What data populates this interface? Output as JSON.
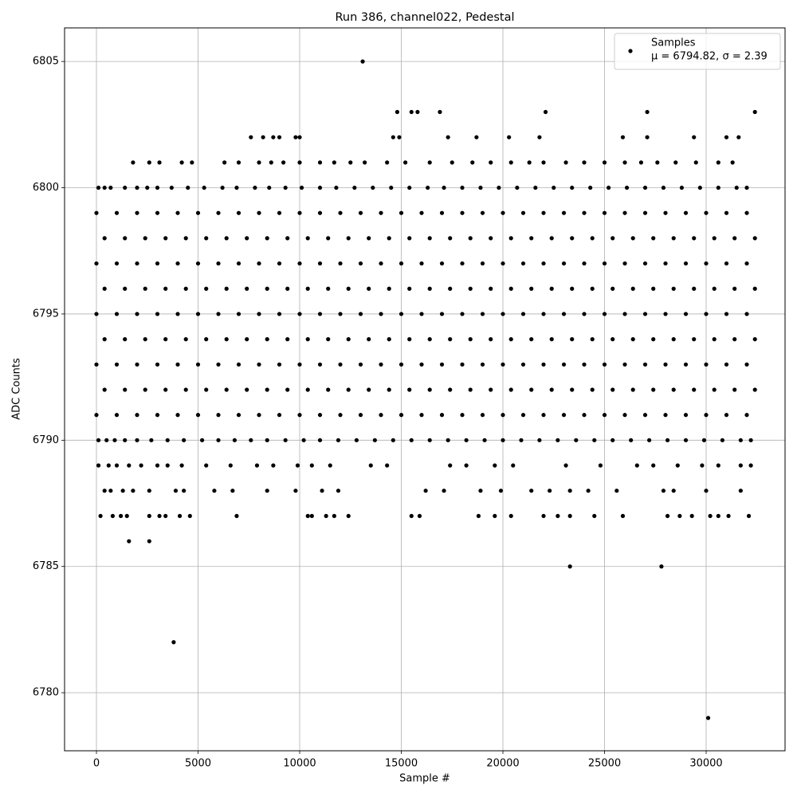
{
  "chart_data": {
    "type": "scatter",
    "title": "Run 386, channel022, Pedestal",
    "x_label": "Sample #",
    "y_label": "ADC Counts",
    "legend_note": "μ = 6794.82, σ = 2.39",
    "legend_position": "upper right",
    "grid": true,
    "xlim": [
      -1569,
      33882
    ],
    "ylim": [
      6777.7,
      6806.33
    ],
    "xticks": [
      0,
      5000,
      10000,
      15000,
      20000,
      25000,
      30000
    ],
    "yticks": [
      6780,
      6785,
      6790,
      6795,
      6800,
      6805
    ],
    "series": [
      {
        "name": "Samples",
        "color": "#000000",
        "x": [
          13100,
          3800,
          30100,
          23300,
          27800,
          1600,
          2600,
          14800,
          15500,
          15800,
          16900,
          22100,
          27100,
          32400,
          7600,
          8200,
          8700,
          9000,
          9800,
          10000,
          14600,
          14900,
          17300,
          18700,
          20300,
          21800,
          25900,
          27100,
          29400,
          31000,
          31600,
          1800,
          2600,
          3100,
          4200,
          4700,
          6300,
          7000,
          8000,
          8600,
          9200,
          10000,
          11000,
          11700,
          12500,
          13200,
          14300,
          15200,
          16400,
          17500,
          18500,
          19400,
          20400,
          21300,
          22000,
          23100,
          24000,
          25000,
          26000,
          26800,
          27600,
          28500,
          29500,
          30600,
          31300,
          100,
          400,
          700,
          1400,
          2000,
          2500,
          3000,
          3700,
          4500,
          5300,
          6200,
          6900,
          7800,
          8500,
          9300,
          10100,
          11000,
          11800,
          12700,
          13600,
          14500,
          15400,
          16300,
          17100,
          18000,
          18900,
          19800,
          20700,
          21600,
          22500,
          23400,
          24300,
          25200,
          26100,
          27000,
          27900,
          28800,
          29700,
          30600,
          31500,
          32000,
          100,
          500,
          900,
          1400,
          2000,
          2700,
          3500,
          4300,
          5200,
          6000,
          6800,
          7600,
          8400,
          9300,
          10200,
          11000,
          11900,
          12800,
          13700,
          14600,
          15500,
          16400,
          17300,
          18200,
          19100,
          20000,
          20900,
          21800,
          22700,
          23600,
          24500,
          25400,
          26300,
          27200,
          28100,
          29000,
          29900,
          30800,
          31700,
          32200,
          100,
          600,
          1000,
          1600,
          2200,
          3000,
          3500,
          4200,
          5400,
          6600,
          7900,
          8700,
          9900,
          10600,
          11500,
          13500,
          14300,
          17400,
          18200,
          19600,
          20500,
          23100,
          24800,
          26600,
          27400,
          28600,
          29800,
          30600,
          31700,
          32200,
          400,
          700,
          1300,
          1800,
          2600,
          3900,
          4300,
          5800,
          6700,
          8400,
          9800,
          11100,
          11900,
          16200,
          17100,
          18900,
          19900,
          21400,
          22300,
          23300,
          24200,
          25600,
          27900,
          28400,
          30000,
          31700,
          200,
          800,
          1200,
          1500,
          2600,
          3100,
          3400,
          4100,
          4600,
          6900,
          10400,
          10600,
          11300,
          11700,
          12400,
          15500,
          15900,
          18800,
          19600,
          20400,
          22000,
          22700,
          23300,
          24500,
          25900,
          28100,
          28700,
          29300,
          30200,
          30600,
          31100,
          32100,
          0,
          1000,
          2000,
          3000,
          4000,
          5000,
          6000,
          7000,
          8000,
          9000,
          10000,
          11000,
          12000,
          13000,
          14000,
          15000,
          16000,
          17000,
          18000,
          19000,
          20000,
          21000,
          22000,
          23000,
          24000,
          25000,
          26000,
          27000,
          28000,
          29000,
          30000,
          31000,
          32000,
          400,
          1400,
          2400,
          3400,
          4400,
          5400,
          6400,
          7400,
          8400,
          9400,
          10400,
          11400,
          12400,
          13400,
          14400,
          15400,
          16400,
          17400,
          18400,
          19400,
          20400,
          21400,
          22400,
          23400,
          24400,
          25400,
          26400,
          27400,
          28400,
          29400,
          30400,
          31400,
          32400,
          0,
          1000,
          2000,
          3000,
          4000,
          5000,
          6000,
          7000,
          8000,
          9000,
          10000,
          11000,
          12000,
          13000,
          14000,
          15000,
          16000,
          17000,
          18000,
          19000,
          20000,
          21000,
          22000,
          23000,
          24000,
          25000,
          26000,
          27000,
          28000,
          29000,
          30000,
          31000,
          32000,
          400,
          1400,
          2400,
          3400,
          4400,
          5400,
          6400,
          7400,
          8400,
          9400,
          10400,
          11400,
          12400,
          13400,
          14400,
          15400,
          16400,
          17400,
          18400,
          19400,
          20400,
          21400,
          22400,
          23400,
          24400,
          25400,
          26400,
          27400,
          28400,
          29400,
          30400,
          31400,
          32400,
          0,
          1000,
          2000,
          3000,
          4000,
          5000,
          6000,
          7000,
          8000,
          9000,
          10000,
          11000,
          12000,
          13000,
          14000,
          15000,
          16000,
          17000,
          18000,
          19000,
          20000,
          21000,
          22000,
          23000,
          24000,
          25000,
          26000,
          27000,
          28000,
          29000,
          30000,
          31000,
          32000,
          400,
          1400,
          2400,
          3400,
          4400,
          5400,
          6400,
          7400,
          8400,
          9400,
          10400,
          11400,
          12400,
          13400,
          14400,
          15400,
          16400,
          17400,
          18400,
          19400,
          20400,
          21400,
          22400,
          23400,
          24400,
          25400,
          26400,
          27400,
          28400,
          29400,
          30400,
          31400,
          32400,
          0,
          1000,
          2000,
          3000,
          4000,
          5000,
          6000,
          7000,
          8000,
          9000,
          10000,
          11000,
          12000,
          13000,
          14000,
          15000,
          16000,
          17000,
          18000,
          19000,
          20000,
          21000,
          22000,
          23000,
          24000,
          25000,
          26000,
          27000,
          28000,
          29000,
          30000,
          31000,
          32000,
          400,
          1400,
          2400,
          3400,
          4400,
          5400,
          6400,
          7400,
          8400,
          9400,
          10400,
          11400,
          12400,
          13400,
          14400,
          15400,
          16400,
          17400,
          18400,
          19400,
          20400,
          21400,
          22400,
          23400,
          24400,
          25400,
          26400,
          27400,
          28400,
          29400,
          30400,
          31400,
          32400,
          0,
          1000,
          2000,
          3000,
          4000,
          5000,
          6000,
          7000,
          8000,
          9000,
          10000,
          11000,
          12000,
          13000,
          14000,
          15000,
          16000,
          17000,
          18000,
          19000,
          20000,
          21000,
          22000,
          23000,
          24000,
          25000,
          26000,
          27000,
          28000,
          29000,
          30000,
          31000,
          32000
        ],
        "values": [
          6805,
          6782,
          6779,
          6785,
          6785,
          6786,
          6786,
          6803,
          6803,
          6803,
          6803,
          6803,
          6803,
          6803,
          6802,
          6802,
          6802,
          6802,
          6802,
          6802,
          6802,
          6802,
          6802,
          6802,
          6802,
          6802,
          6802,
          6802,
          6802,
          6802,
          6802,
          6801,
          6801,
          6801,
          6801,
          6801,
          6801,
          6801,
          6801,
          6801,
          6801,
          6801,
          6801,
          6801,
          6801,
          6801,
          6801,
          6801,
          6801,
          6801,
          6801,
          6801,
          6801,
          6801,
          6801,
          6801,
          6801,
          6801,
          6801,
          6801,
          6801,
          6801,
          6801,
          6801,
          6801,
          6800,
          6800,
          6800,
          6800,
          6800,
          6800,
          6800,
          6800,
          6800,
          6800,
          6800,
          6800,
          6800,
          6800,
          6800,
          6800,
          6800,
          6800,
          6800,
          6800,
          6800,
          6800,
          6800,
          6800,
          6800,
          6800,
          6800,
          6800,
          6800,
          6800,
          6800,
          6800,
          6800,
          6800,
          6800,
          6800,
          6800,
          6800,
          6800,
          6800,
          6800,
          6790,
          6790,
          6790,
          6790,
          6790,
          6790,
          6790,
          6790,
          6790,
          6790,
          6790,
          6790,
          6790,
          6790,
          6790,
          6790,
          6790,
          6790,
          6790,
          6790,
          6790,
          6790,
          6790,
          6790,
          6790,
          6790,
          6790,
          6790,
          6790,
          6790,
          6790,
          6790,
          6790,
          6790,
          6790,
          6790,
          6790,
          6790,
          6790,
          6790,
          6789,
          6789,
          6789,
          6789,
          6789,
          6789,
          6789,
          6789,
          6789,
          6789,
          6789,
          6789,
          6789,
          6789,
          6789,
          6789,
          6789,
          6789,
          6789,
          6789,
          6789,
          6789,
          6789,
          6789,
          6789,
          6789,
          6789,
          6789,
          6789,
          6789,
          6788,
          6788,
          6788,
          6788,
          6788,
          6788,
          6788,
          6788,
          6788,
          6788,
          6788,
          6788,
          6788,
          6788,
          6788,
          6788,
          6788,
          6788,
          6788,
          6788,
          6788,
          6788,
          6788,
          6788,
          6788,
          6788,
          6787,
          6787,
          6787,
          6787,
          6787,
          6787,
          6787,
          6787,
          6787,
          6787,
          6787,
          6787,
          6787,
          6787,
          6787,
          6787,
          6787,
          6787,
          6787,
          6787,
          6787,
          6787,
          6787,
          6787,
          6787,
          6787,
          6787,
          6787,
          6787,
          6787,
          6787,
          6787,
          6799,
          6799,
          6799,
          6799,
          6799,
          6799,
          6799,
          6799,
          6799,
          6799,
          6799,
          6799,
          6799,
          6799,
          6799,
          6799,
          6799,
          6799,
          6799,
          6799,
          6799,
          6799,
          6799,
          6799,
          6799,
          6799,
          6799,
          6799,
          6799,
          6799,
          6799,
          6799,
          6799,
          6798,
          6798,
          6798,
          6798,
          6798,
          6798,
          6798,
          6798,
          6798,
          6798,
          6798,
          6798,
          6798,
          6798,
          6798,
          6798,
          6798,
          6798,
          6798,
          6798,
          6798,
          6798,
          6798,
          6798,
          6798,
          6798,
          6798,
          6798,
          6798,
          6798,
          6798,
          6798,
          6798,
          6797,
          6797,
          6797,
          6797,
          6797,
          6797,
          6797,
          6797,
          6797,
          6797,
          6797,
          6797,
          6797,
          6797,
          6797,
          6797,
          6797,
          6797,
          6797,
          6797,
          6797,
          6797,
          6797,
          6797,
          6797,
          6797,
          6797,
          6797,
          6797,
          6797,
          6797,
          6797,
          6797,
          6796,
          6796,
          6796,
          6796,
          6796,
          6796,
          6796,
          6796,
          6796,
          6796,
          6796,
          6796,
          6796,
          6796,
          6796,
          6796,
          6796,
          6796,
          6796,
          6796,
          6796,
          6796,
          6796,
          6796,
          6796,
          6796,
          6796,
          6796,
          6796,
          6796,
          6796,
          6796,
          6796,
          6795,
          6795,
          6795,
          6795,
          6795,
          6795,
          6795,
          6795,
          6795,
          6795,
          6795,
          6795,
          6795,
          6795,
          6795,
          6795,
          6795,
          6795,
          6795,
          6795,
          6795,
          6795,
          6795,
          6795,
          6795,
          6795,
          6795,
          6795,
          6795,
          6795,
          6795,
          6795,
          6795,
          6794,
          6794,
          6794,
          6794,
          6794,
          6794,
          6794,
          6794,
          6794,
          6794,
          6794,
          6794,
          6794,
          6794,
          6794,
          6794,
          6794,
          6794,
          6794,
          6794,
          6794,
          6794,
          6794,
          6794,
          6794,
          6794,
          6794,
          6794,
          6794,
          6794,
          6794,
          6794,
          6794,
          6793,
          6793,
          6793,
          6793,
          6793,
          6793,
          6793,
          6793,
          6793,
          6793,
          6793,
          6793,
          6793,
          6793,
          6793,
          6793,
          6793,
          6793,
          6793,
          6793,
          6793,
          6793,
          6793,
          6793,
          6793,
          6793,
          6793,
          6793,
          6793,
          6793,
          6793,
          6793,
          6793,
          6792,
          6792,
          6792,
          6792,
          6792,
          6792,
          6792,
          6792,
          6792,
          6792,
          6792,
          6792,
          6792,
          6792,
          6792,
          6792,
          6792,
          6792,
          6792,
          6792,
          6792,
          6792,
          6792,
          6792,
          6792,
          6792,
          6792,
          6792,
          6792,
          6792,
          6792,
          6792,
          6792,
          6791,
          6791,
          6791,
          6791,
          6791,
          6791,
          6791,
          6791,
          6791,
          6791,
          6791,
          6791,
          6791,
          6791,
          6791,
          6791,
          6791,
          6791,
          6791,
          6791,
          6791,
          6791,
          6791,
          6791,
          6791,
          6791,
          6791,
          6791,
          6791,
          6791,
          6791,
          6791,
          6791
        ]
      }
    ]
  }
}
